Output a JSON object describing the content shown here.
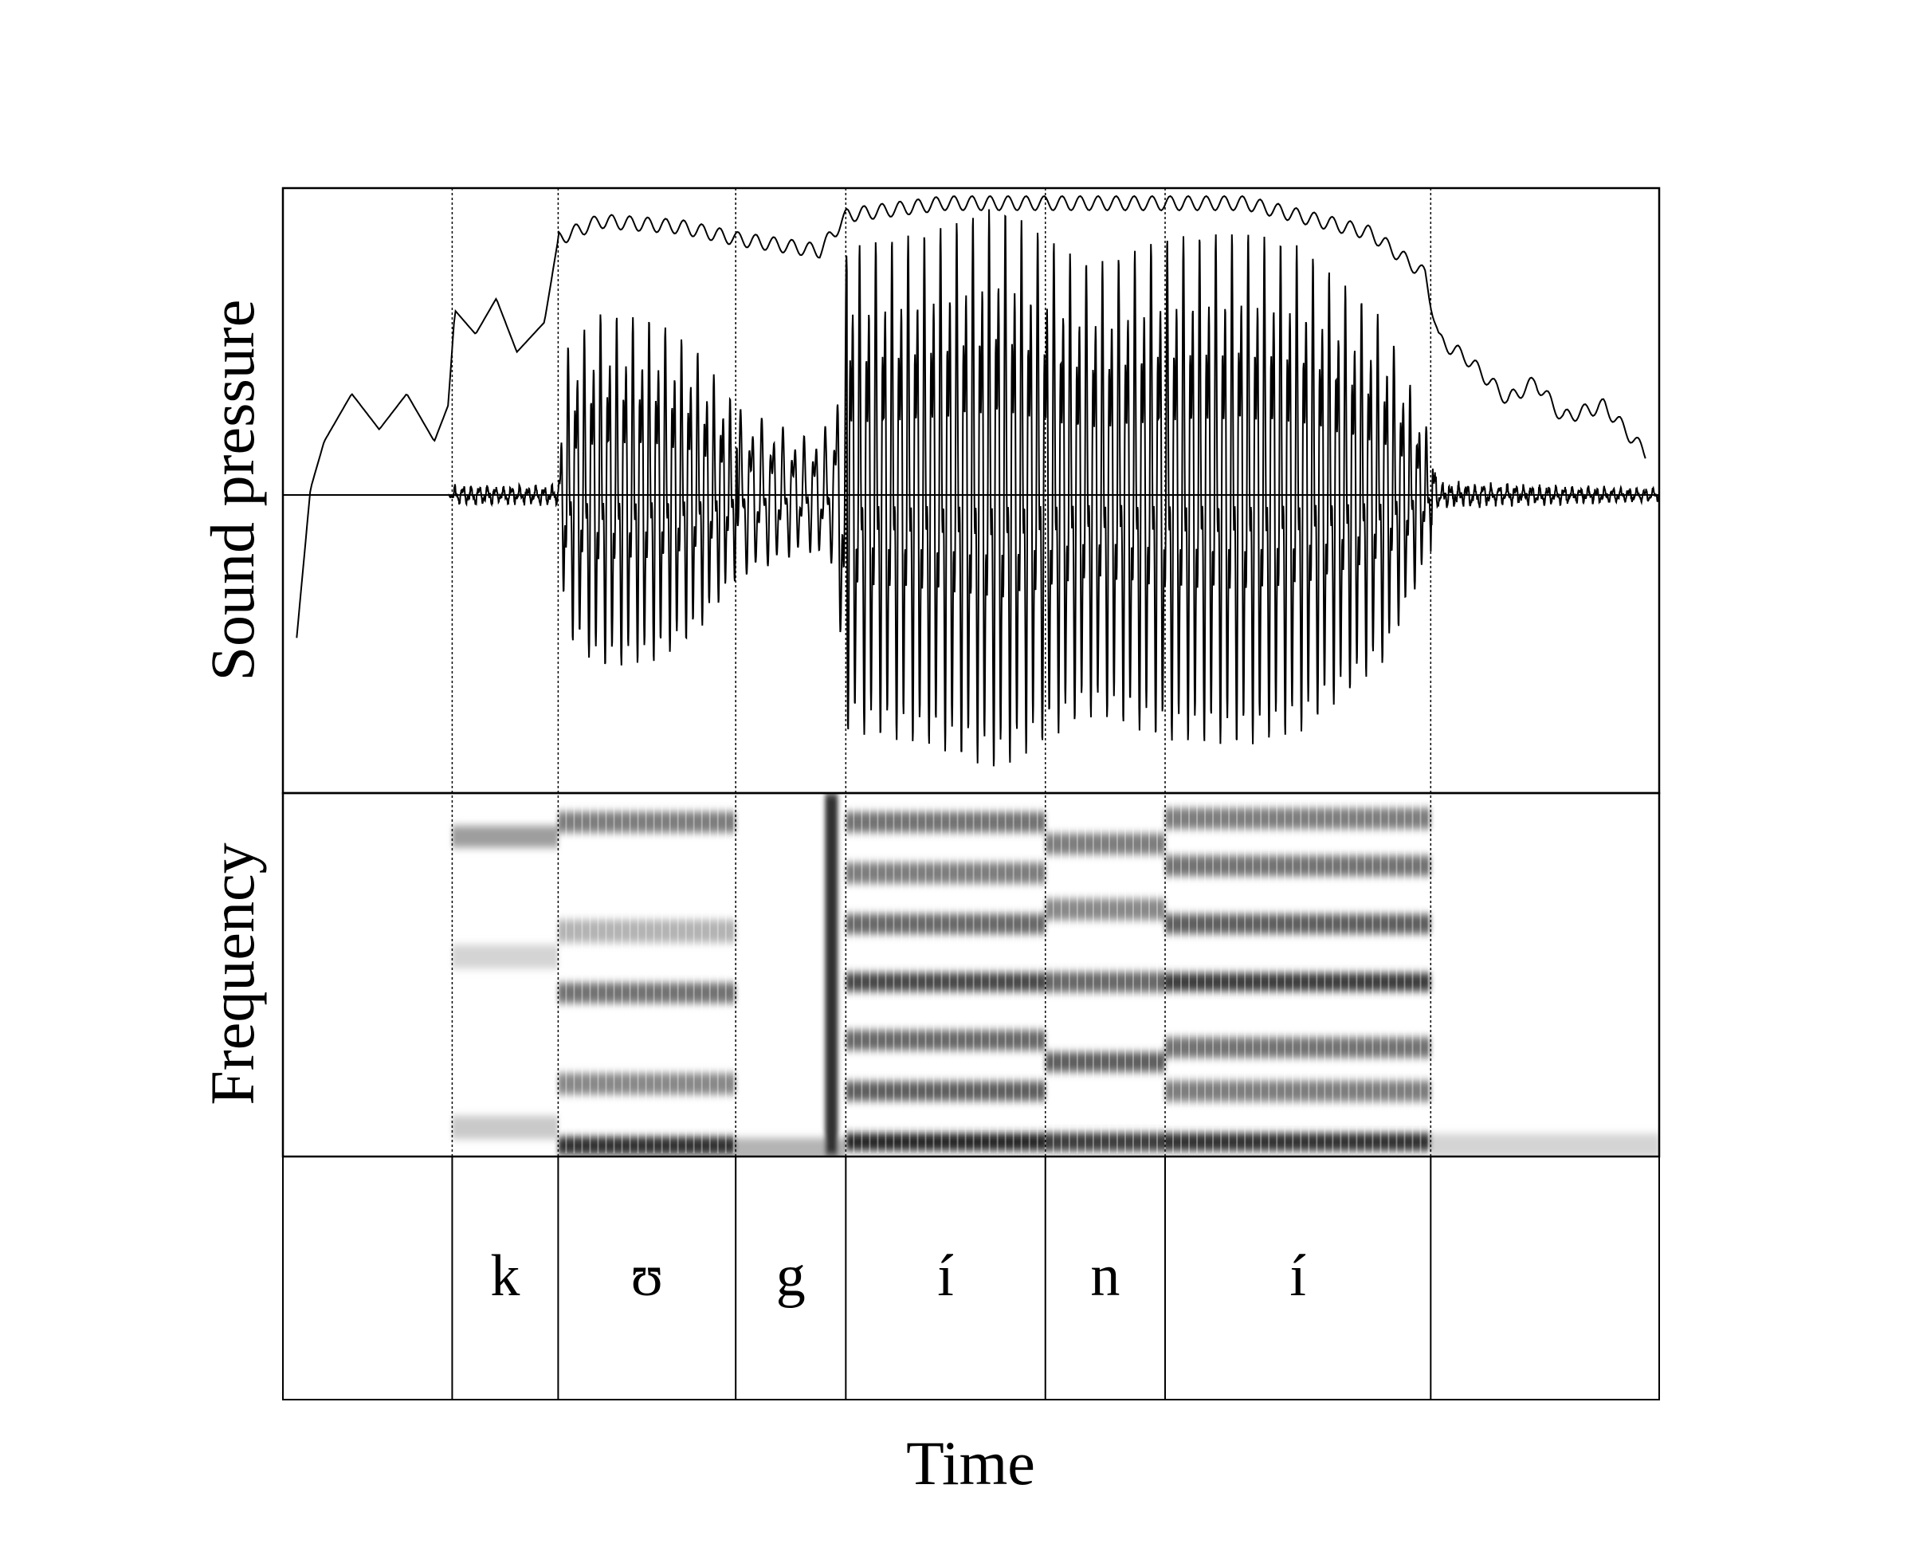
{
  "chart_data": {
    "type": "waveform-spectrogram",
    "x_axis_label": "Time",
    "panels": [
      {
        "id": "waveform",
        "ylabel": "Sound pressure"
      },
      {
        "id": "spectrogram",
        "ylabel": "Frequency"
      },
      {
        "id": "segmentation",
        "ylabel": ""
      }
    ],
    "segments": [
      {
        "label": "",
        "start": 0.0,
        "end": 0.123
      },
      {
        "label": "k",
        "start": 0.123,
        "end": 0.2
      },
      {
        "label": "ʊ",
        "start": 0.2,
        "end": 0.329
      },
      {
        "label": "g",
        "start": 0.329,
        "end": 0.409
      },
      {
        "label": "í",
        "start": 0.409,
        "end": 0.554
      },
      {
        "label": "n",
        "start": 0.554,
        "end": 0.641
      },
      {
        "label": "í",
        "start": 0.641,
        "end": 0.834
      },
      {
        "label": "",
        "start": 0.834,
        "end": 1.0
      }
    ],
    "amplitude_envelope": [
      [
        0,
        0.0
      ],
      [
        0.02,
        0.5
      ],
      [
        0.03,
        0.58
      ],
      [
        0.05,
        0.66
      ],
      [
        0.07,
        0.6
      ],
      [
        0.09,
        0.66
      ],
      [
        0.11,
        0.58
      ],
      [
        0.12,
        0.64
      ],
      [
        0.125,
        0.8
      ],
      [
        0.14,
        0.76
      ],
      [
        0.155,
        0.82
      ],
      [
        0.17,
        0.73
      ],
      [
        0.19,
        0.78
      ],
      [
        0.2,
        0.92
      ],
      [
        0.23,
        0.95
      ],
      [
        0.29,
        0.94
      ],
      [
        0.33,
        0.92
      ],
      [
        0.39,
        0.9
      ],
      [
        0.41,
        0.96
      ],
      [
        0.48,
        0.98
      ],
      [
        0.55,
        0.98
      ],
      [
        0.64,
        0.98
      ],
      [
        0.7,
        0.98
      ],
      [
        0.79,
        0.93
      ],
      [
        0.83,
        0.86
      ],
      [
        0.84,
        0.75
      ],
      [
        0.86,
        0.72
      ],
      [
        0.89,
        0.65
      ],
      [
        0.91,
        0.68
      ],
      [
        0.93,
        0.62
      ],
      [
        0.96,
        0.64
      ],
      [
        0.99,
        0.56
      ]
    ],
    "oscillogram_amplitude": [
      [
        0,
        0.0
      ],
      [
        0.12,
        0.0
      ],
      [
        0.125,
        0.03
      ],
      [
        0.2,
        0.03
      ],
      [
        0.205,
        0.5
      ],
      [
        0.23,
        0.62
      ],
      [
        0.27,
        0.6
      ],
      [
        0.3,
        0.5
      ],
      [
        0.33,
        0.3
      ],
      [
        0.38,
        0.2
      ],
      [
        0.4,
        0.25
      ],
      [
        0.41,
        0.85
      ],
      [
        0.47,
        0.9
      ],
      [
        0.52,
        0.99
      ],
      [
        0.55,
        0.9
      ],
      [
        0.58,
        0.8
      ],
      [
        0.6,
        0.8
      ],
      [
        0.64,
        0.88
      ],
      [
        0.7,
        0.9
      ],
      [
        0.74,
        0.85
      ],
      [
        0.8,
        0.6
      ],
      [
        0.83,
        0.25
      ],
      [
        0.84,
        0.04
      ],
      [
        1.0,
        0.02
      ]
    ],
    "spectrogram_bands": [
      {
        "segment": 1,
        "rows": [
          [
            0.08,
            0.25
          ],
          [
            0.55,
            0.2
          ],
          [
            0.88,
            0.45
          ]
        ]
      },
      {
        "segment": 2,
        "rows": [
          [
            0.03,
            0.95
          ],
          [
            0.2,
            0.55
          ],
          [
            0.45,
            0.65
          ],
          [
            0.62,
            0.35
          ],
          [
            0.92,
            0.6
          ]
        ]
      },
      {
        "segment": 3,
        "rows": [
          [
            0.02,
            0.35
          ]
        ]
      },
      {
        "segment": 4,
        "rows": [
          [
            0.04,
            1.0
          ],
          [
            0.18,
            0.75
          ],
          [
            0.32,
            0.7
          ],
          [
            0.48,
            0.85
          ],
          [
            0.64,
            0.7
          ],
          [
            0.78,
            0.6
          ],
          [
            0.92,
            0.65
          ]
        ]
      },
      {
        "segment": 5,
        "rows": [
          [
            0.04,
            0.9
          ],
          [
            0.26,
            0.75
          ],
          [
            0.48,
            0.7
          ],
          [
            0.68,
            0.55
          ],
          [
            0.86,
            0.6
          ]
        ]
      },
      {
        "segment": 6,
        "rows": [
          [
            0.04,
            0.95
          ],
          [
            0.18,
            0.6
          ],
          [
            0.3,
            0.65
          ],
          [
            0.48,
            0.9
          ],
          [
            0.64,
            0.75
          ],
          [
            0.8,
            0.65
          ],
          [
            0.93,
            0.6
          ]
        ]
      },
      {
        "segment": 7,
        "rows": [
          [
            0.03,
            0.2
          ]
        ]
      }
    ]
  }
}
